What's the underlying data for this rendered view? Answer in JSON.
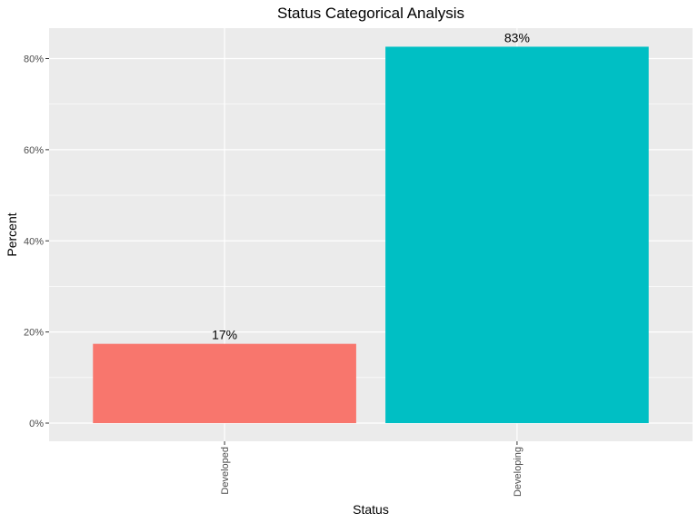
{
  "chart_data": {
    "type": "bar",
    "title": "Status Categorical Analysis",
    "xlabel": "Status",
    "ylabel": "Percent",
    "categories": [
      "Developed",
      "Developing"
    ],
    "values": [
      17.4,
      82.6
    ],
    "value_labels": [
      "17%",
      "83%"
    ],
    "colors": [
      "#F8766D",
      "#00BFC4"
    ],
    "ylim": [
      0,
      86.5
    ],
    "yticks": [
      0,
      20,
      40,
      60,
      80
    ],
    "ytick_labels": [
      "0%",
      "20%",
      "40%",
      "60%",
      "80%"
    ],
    "grid": true,
    "panel_background": "#EBEBEB",
    "legend": "none"
  }
}
